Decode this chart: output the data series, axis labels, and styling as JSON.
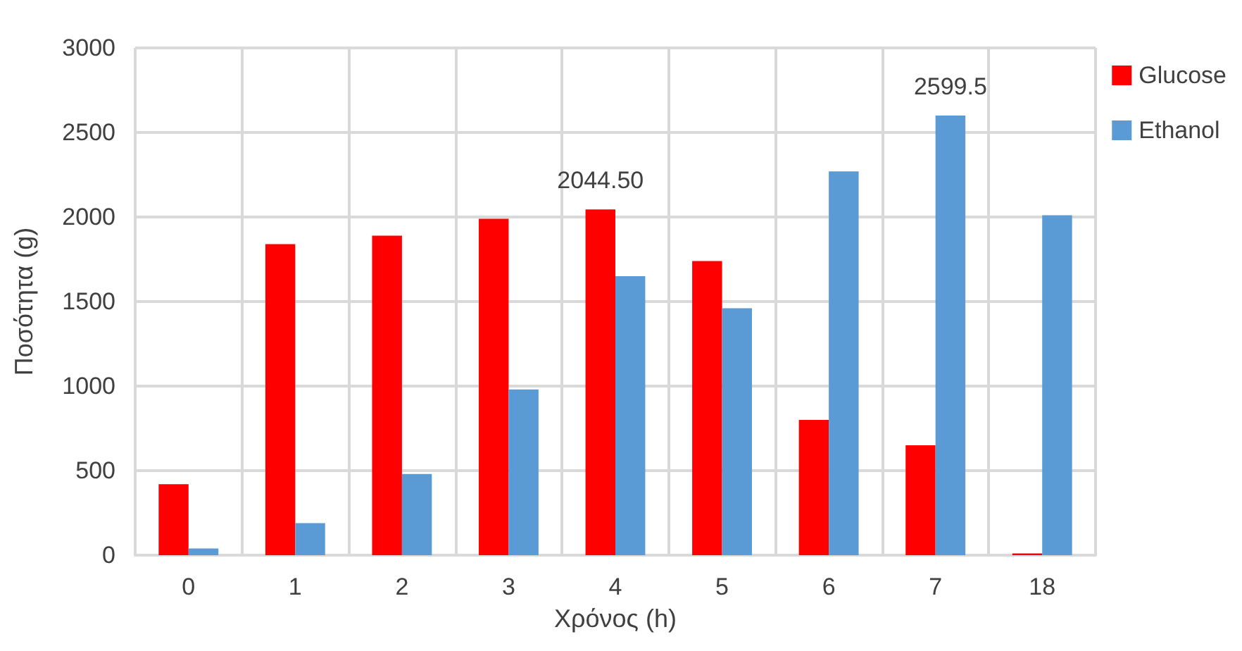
{
  "chart_data": {
    "type": "bar",
    "xlabel": "Χρόνος (h)",
    "ylabel": "Ποσότητα (g)",
    "categories": [
      "0",
      "1",
      "2",
      "3",
      "4",
      "5",
      "6",
      "7",
      "18"
    ],
    "series": [
      {
        "name": "Glucose",
        "color": "#ff0000",
        "values": [
          420,
          1840,
          1890,
          1990,
          2044.5,
          1740,
          800,
          650,
          10
        ],
        "value_labels": [
          null,
          null,
          null,
          null,
          "2044.50",
          null,
          null,
          null,
          null
        ]
      },
      {
        "name": "Ethanol",
        "color": "#5b9bd5",
        "values": [
          40,
          190,
          480,
          980,
          1650,
          1460,
          2270,
          2599.5,
          2010
        ],
        "value_labels": [
          null,
          null,
          null,
          null,
          null,
          null,
          null,
          "2599.5",
          null
        ]
      }
    ],
    "ylim": [
      0,
      3000
    ],
    "yticks": [
      0,
      500,
      1000,
      1500,
      2000,
      2500,
      3000
    ],
    "grid": true,
    "legend": "right"
  }
}
